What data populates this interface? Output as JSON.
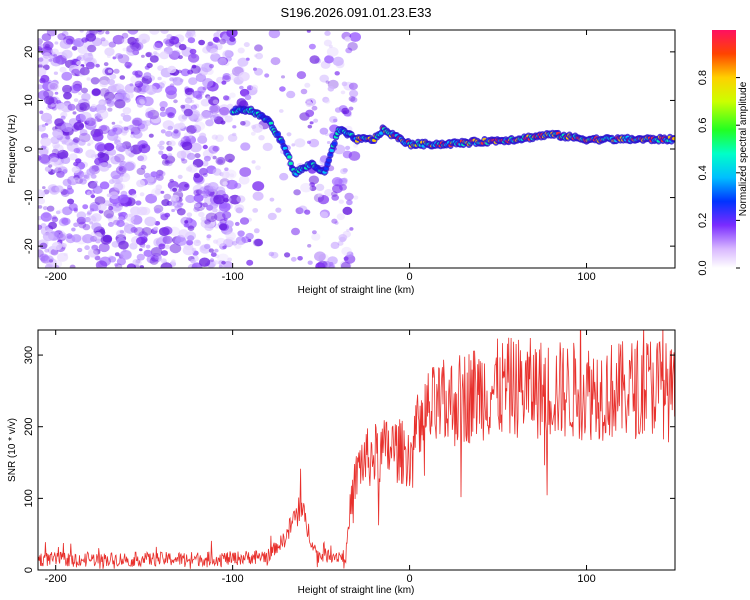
{
  "title": "S196.2026.091.01.23.E33",
  "chart_data": [
    {
      "type": "heatmap",
      "name": "spectrogram",
      "xlabel": "Height of straight line (km)",
      "ylabel": "Frequency (Hz)",
      "xlim": [
        -210,
        150
      ],
      "ylim": [
        -24.5,
        24.5
      ],
      "xticks": [
        -200,
        -100,
        0,
        100
      ],
      "xtick_labels": [
        "-200",
        "-100",
        "0",
        "100"
      ],
      "yticks": [
        -20,
        -10,
        0,
        10,
        20
      ],
      "ytick_labels": [
        "-20",
        "-10",
        "0",
        "10",
        "20"
      ],
      "colorbar": {
        "label": "Normalized spectral amplitude",
        "range": [
          0,
          1
        ],
        "ticks": [
          0.0,
          0.2,
          0.4,
          0.6,
          0.8
        ],
        "tick_labels": [
          "0.0",
          "0.2",
          "0.4",
          "0.6",
          "0.8"
        ]
      },
      "signal_trace": [
        {
          "x": -100,
          "f": 8
        },
        {
          "x": -90,
          "f": 8
        },
        {
          "x": -80,
          "f": 6
        },
        {
          "x": -75,
          "f": 3
        },
        {
          "x": -70,
          "f": 0
        },
        {
          "x": -65,
          "f": -5
        },
        {
          "x": -55,
          "f": -3
        },
        {
          "x": -48,
          "f": -5
        },
        {
          "x": -40,
          "f": 4
        },
        {
          "x": -30,
          "f": 2
        },
        {
          "x": -20,
          "f": 2
        },
        {
          "x": -15,
          "f": 4
        },
        {
          "x": -5,
          "f": 2
        },
        {
          "x": 0,
          "f": 1
        },
        {
          "x": 20,
          "f": 1
        },
        {
          "x": 60,
          "f": 2
        },
        {
          "x": 80,
          "f": 3
        },
        {
          "x": 100,
          "f": 2
        },
        {
          "x": 150,
          "f": 2
        }
      ]
    },
    {
      "type": "line",
      "name": "snr",
      "xlabel": "Height of straight line (km)",
      "ylabel": "SNR (10 * v/v)",
      "xlim": [
        -210,
        150
      ],
      "ylim": [
        0,
        335
      ],
      "xticks": [
        -200,
        -100,
        0,
        100
      ],
      "xtick_labels": [
        "-200",
        "-100",
        "0",
        "100"
      ],
      "yticks": [
        0,
        100,
        200,
        300
      ],
      "ytick_labels": [
        "0",
        "100",
        "200",
        "300"
      ],
      "series_color": "#e8302c",
      "envelope": [
        {
          "x": -210,
          "y": 15
        },
        {
          "x": -150,
          "y": 15
        },
        {
          "x": -100,
          "y": 16
        },
        {
          "x": -80,
          "y": 20
        },
        {
          "x": -70,
          "y": 45
        },
        {
          "x": -62,
          "y": 90
        },
        {
          "x": -58,
          "y": 60
        },
        {
          "x": -52,
          "y": 20
        },
        {
          "x": -36,
          "y": 20
        },
        {
          "x": -33,
          "y": 100
        },
        {
          "x": -28,
          "y": 150
        },
        {
          "x": -20,
          "y": 160
        },
        {
          "x": -10,
          "y": 170
        },
        {
          "x": 0,
          "y": 160
        },
        {
          "x": 10,
          "y": 220
        },
        {
          "x": 20,
          "y": 230
        },
        {
          "x": 40,
          "y": 250
        },
        {
          "x": 60,
          "y": 255
        },
        {
          "x": 90,
          "y": 250
        },
        {
          "x": 120,
          "y": 250
        },
        {
          "x": 140,
          "y": 260
        },
        {
          "x": 150,
          "y": 240
        }
      ]
    }
  ]
}
